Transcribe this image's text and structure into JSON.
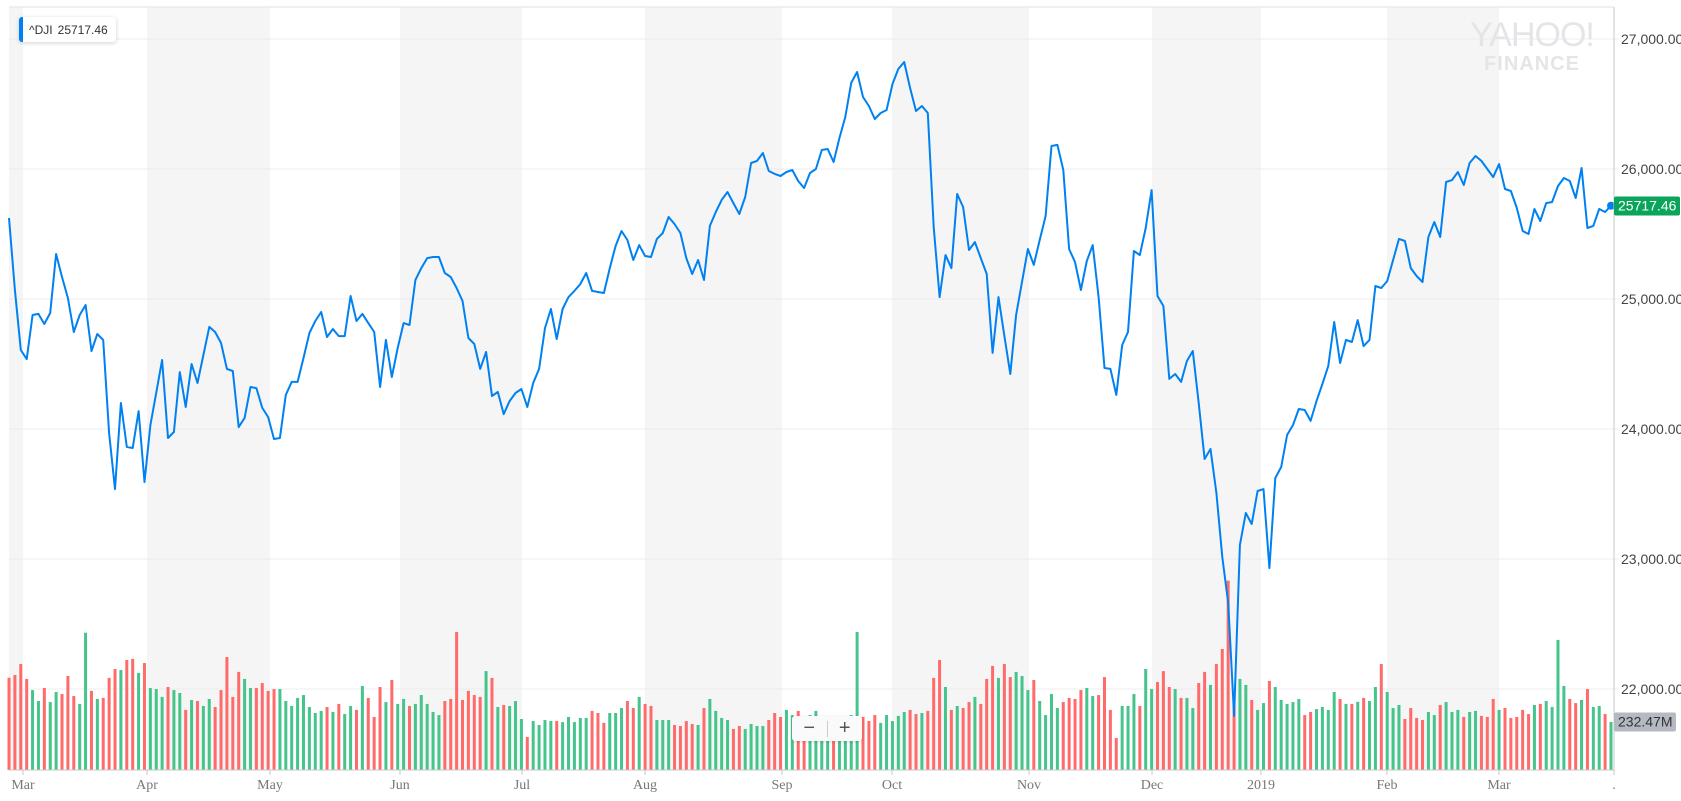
{
  "legend": {
    "symbol": "^DJI",
    "value": "25717.46"
  },
  "watermark": {
    "line1": "YAHOO!",
    "line2": "FINANCE"
  },
  "colors": {
    "line": "#0081f2",
    "up": "#45c48b",
    "down": "#ff6b6b",
    "price_tag": "#0aa55a",
    "band": "#f5f5f5",
    "grid": "#ececec"
  },
  "zoom_controls": {
    "zoom_out": "−",
    "zoom_in": "+"
  },
  "chart_data": {
    "type": "line",
    "title": "",
    "series": [
      {
        "name": "^DJI"
      }
    ],
    "y_ticks": [
      "27,000.00",
      "26,000.00",
      "25,000.00",
      "24,000.00",
      "23,000.00",
      "22,000.00"
    ],
    "y_tick_values": [
      27000,
      26000,
      25000,
      24000,
      23000,
      22000
    ],
    "x_ticks": [
      "Mar",
      "Apr",
      "May",
      "Jun",
      "Jul",
      "Aug",
      "Sep",
      "Oct",
      "Nov",
      "Dec",
      "2019",
      "Feb",
      "Mar",
      "."
    ],
    "last_price_label": "25717.46",
    "last_volume_label": "232.47M",
    "grid": true,
    "closes": [
      25623,
      25069,
      24608,
      24538,
      24877,
      24885,
      24808,
      24892,
      25346,
      25169,
      25008,
      24746,
      24877,
      24954,
      24600,
      24731,
      24685,
      23969,
      23538,
      24200,
      23862,
      23854,
      24138,
      23592,
      24031,
      24277,
      24531,
      23931,
      23977,
      24438,
      24169,
      24500,
      24354,
      24569,
      24785,
      24746,
      24662,
      24462,
      24446,
      24015,
      24085,
      24323,
      24315,
      24162,
      24092,
      23923,
      23931,
      24262,
      24362,
      24362,
      24546,
      24738,
      24831,
      24900,
      24708,
      24769,
      24715,
      24715,
      25023,
      24831,
      24885,
      24815,
      24746,
      24323,
      24685,
      24400,
      24623,
      24815,
      24800,
      25146,
      25238,
      25315,
      25323,
      25323,
      25200,
      25169,
      25085,
      24985,
      24700,
      24654,
      24462,
      24592,
      24254,
      24285,
      24115,
      24215,
      24277,
      24308,
      24169,
      24354,
      24462,
      24777,
      24923,
      24692,
      24923,
      25015,
      25062,
      25115,
      25200,
      25062,
      25054,
      25046,
      25238,
      25408,
      25523,
      25454,
      25300,
      25415,
      25331,
      25323,
      25462,
      25508,
      25631,
      25577,
      25508,
      25315,
      25192,
      25300,
      25146,
      25562,
      25669,
      25762,
      25823,
      25738,
      25654,
      25785,
      26046,
      26062,
      26123,
      25985,
      25962,
      25946,
      25977,
      25992,
      25908,
      25854,
      25969,
      26000,
      26146,
      26154,
      26054,
      26238,
      26400,
      26662,
      26746,
      26554,
      26485,
      26385,
      26431,
      26454,
      26654,
      26769,
      26823,
      26623,
      26446,
      26485,
      26431,
      25554,
      25015,
      25338,
      25238,
      25808,
      25708,
      25377,
      25438,
      25315,
      25192,
      24585,
      25015,
      24715,
      24423,
      24877,
      25131,
      25385,
      25262,
      25454,
      25638,
      26177,
      26185,
      25992,
      25385,
      25285,
      25069,
      25292,
      25415,
      25015,
      24469,
      24462,
      24262,
      24646,
      24746,
      25369,
      25338,
      25546,
      25838,
      25023,
      24946,
      24385,
      24423,
      24362,
      24523,
      24600,
      24200,
      23769,
      23846,
      23508,
      23015,
      22662,
      21792,
      23108,
      23354,
      23269,
      23523,
      23538,
      22931,
      23623,
      23708,
      23954,
      24031,
      24154,
      24146,
      24062,
      24215,
      24346,
      24485,
      24823,
      24508,
      24685,
      24669,
      24838,
      24638,
      24685,
      25100,
      25085,
      25138,
      25300,
      25462,
      25446,
      25238,
      25177,
      25131,
      25477,
      25592,
      25477,
      25900,
      25915,
      25977,
      25877,
      26046,
      26100,
      26062,
      26000,
      25938,
      26038,
      25846,
      25831,
      25700,
      25523,
      25500,
      25692,
      25600,
      25738,
      25746,
      25869,
      25931,
      25908,
      25777,
      26008,
      25546,
      25562,
      25692,
      25669,
      25717.46
    ],
    "volumes_millions": [
      447,
      460,
      513,
      441,
      387,
      334,
      397,
      329,
      378,
      368,
      455,
      358,
      320,
      665,
      383,
      344,
      349,
      446,
      489,
      484,
      533,
      538,
      470,
      518,
      397,
      392,
      354,
      402,
      387,
      373,
      291,
      339,
      334,
      310,
      344,
      305,
      387,
      547,
      354,
      475,
      441,
      397,
      397,
      421,
      383,
      392,
      392,
      334,
      310,
      349,
      363,
      305,
      276,
      286,
      305,
      281,
      320,
      271,
      310,
      291,
      407,
      349,
      257,
      402,
      329,
      436,
      320,
      344,
      310,
      320,
      363,
      320,
      281,
      266,
      334,
      344,
      668,
      339,
      383,
      363,
      354,
      479,
      446,
      305,
      315,
      310,
      334,
      247,
      160,
      237,
      218,
      242,
      237,
      237,
      232,
      257,
      232,
      252,
      252,
      286,
      276,
      228,
      276,
      276,
      300,
      334,
      300,
      354,
      320,
      310,
      242,
      242,
      242,
      218,
      213,
      237,
      223,
      218,
      300,
      344,
      286,
      252,
      242,
      199,
      213,
      199,
      223,
      213,
      213,
      242,
      276,
      257,
      291,
      266,
      286,
      258,
      266,
      286,
      258,
      258,
      258,
      258,
      258,
      266,
      668,
      257,
      237,
      266,
      228,
      266,
      237,
      262,
      281,
      291,
      271,
      276,
      286,
      446,
      533,
      402,
      291,
      310,
      300,
      329,
      354,
      320,
      441,
      504,
      446,
      513,
      450,
      475,
      455,
      387,
      436,
      334,
      266,
      368,
      300,
      329,
      349,
      344,
      387,
      397,
      358,
      363,
      450,
      291,
      155,
      310,
      310,
      368,
      310,
      489,
      392,
      426,
      479,
      402,
      392,
      349,
      349,
      300,
      421,
      475,
      412,
      513,
      586,
      917,
      310,
      441,
      412,
      339,
      291,
      324,
      431,
      402,
      339,
      320,
      329,
      344,
      266,
      281,
      295,
      305,
      291,
      378,
      344,
      320,
      320,
      330,
      349,
      334,
      402,
      513,
      378,
      300,
      315,
      247,
      300,
      252,
      242,
      281,
      266,
      315,
      329,
      281,
      291,
      257,
      281,
      286,
      262,
      257,
      344,
      291,
      300,
      252,
      257,
      291,
      271,
      315,
      320,
      334,
      305,
      630,
      407,
      344,
      324,
      339,
      392,
      305,
      310,
      271,
      232.47
    ]
  }
}
